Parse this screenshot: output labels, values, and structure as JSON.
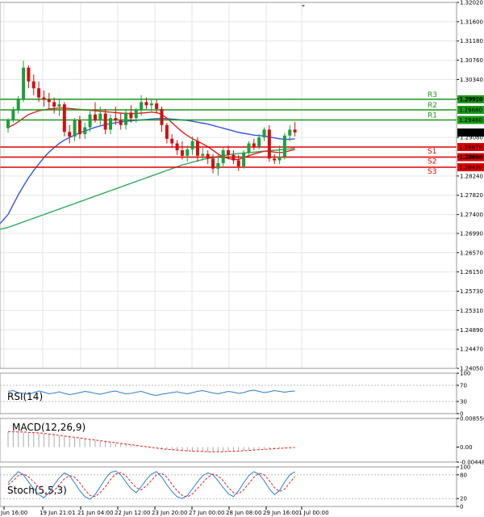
{
  "chart_data": {
    "type": "candlestick",
    "ylim": [
      1.2405,
      1.3202
    ],
    "y_ticks": [
      "1.32020",
      "1.31600",
      "1.31180",
      "1.30760",
      "1.30340",
      "1.29920",
      "1.29080",
      "1.28660",
      "1.28240",
      "1.27820",
      "1.27400",
      "1.26990",
      "1.26570",
      "1.26150",
      "1.25730",
      "1.25310",
      "1.24890",
      "1.24470",
      "1.24050"
    ],
    "x_ticks": [
      "Jun 16:00",
      "19 Jun 21:01",
      "21 Jun 04:00",
      "22 Jun 12:00",
      "23 Jun 20:00",
      "27 Jun 00:00",
      "28 Jun 08:00",
      "29 Jun 16:00",
      "1 Jul 00:00"
    ],
    "current_price": "1.29186",
    "levels": [
      {
        "name": "R3",
        "value": 1.2991,
        "label": "1.29910",
        "color": "#1a9a1a"
      },
      {
        "name": "R2",
        "value": 1.2968,
        "label": "1.29680",
        "color": "#1a9a1a"
      },
      {
        "name": "R1",
        "value": 1.2946,
        "label": "1.29460",
        "color": "#1a9a1a"
      },
      {
        "name": "S1",
        "value": 1.2887,
        "label": "1.28870",
        "color": "#e00000"
      },
      {
        "name": "S2",
        "value": 1.2865,
        "label": "1.28650",
        "color": "#e00000"
      },
      {
        "name": "S3",
        "value": 1.2843,
        "label": "1.28430",
        "color": "#e00000"
      }
    ],
    "candles": [
      [
        1.2928,
        1.295,
        1.2918,
        1.2945
      ],
      [
        1.2945,
        1.2975,
        1.294,
        1.2968
      ],
      [
        1.2968,
        1.2998,
        1.296,
        1.299
      ],
      [
        1.299,
        1.3075,
        1.2985,
        1.306
      ],
      [
        1.306,
        1.3065,
        1.3015,
        1.303
      ],
      [
        1.303,
        1.3045,
        1.3,
        1.3015
      ],
      [
        1.3015,
        1.303,
        1.2985,
        1.2995
      ],
      [
        1.2995,
        1.301,
        1.2975,
        1.299
      ],
      [
        1.299,
        1.3005,
        1.297,
        1.2985
      ],
      [
        1.2985,
        1.2995,
        1.296,
        1.2975
      ],
      [
        1.2975,
        1.299,
        1.2955,
        1.298
      ],
      [
        1.298,
        1.2985,
        1.291,
        1.292
      ],
      [
        1.292,
        1.2935,
        1.2895,
        1.291
      ],
      [
        1.291,
        1.295,
        1.29,
        1.2945
      ],
      [
        1.2945,
        1.2955,
        1.2905,
        1.2915
      ],
      [
        1.2915,
        1.294,
        1.2905,
        1.293
      ],
      [
        1.293,
        1.2965,
        1.292,
        1.2958
      ],
      [
        1.2958,
        1.2985,
        1.294,
        1.2945
      ],
      [
        1.2945,
        1.2975,
        1.2935,
        1.296
      ],
      [
        1.296,
        1.297,
        1.2915,
        1.2925
      ],
      [
        1.2925,
        1.2958,
        1.2915,
        1.295
      ],
      [
        1.295,
        1.2975,
        1.2935,
        1.2945
      ],
      [
        1.2945,
        1.296,
        1.2925,
        1.2935
      ],
      [
        1.2935,
        1.297,
        1.2925,
        1.2962
      ],
      [
        1.2962,
        1.2978,
        1.294,
        1.295
      ],
      [
        1.295,
        1.2972,
        1.294,
        1.2968
      ],
      [
        1.2968,
        1.3,
        1.2955,
        1.2985
      ],
      [
        1.2985,
        1.2995,
        1.297,
        1.2978
      ],
      [
        1.2978,
        1.2992,
        1.2965,
        1.2982
      ],
      [
        1.2982,
        1.299,
        1.296,
        1.297
      ],
      [
        1.297,
        1.2975,
        1.292,
        1.2935
      ],
      [
        1.2935,
        1.294,
        1.2895,
        1.2905
      ],
      [
        1.2905,
        1.2915,
        1.2885,
        1.2895
      ],
      [
        1.2895,
        1.2902,
        1.287,
        1.288
      ],
      [
        1.288,
        1.29,
        1.286,
        1.2868
      ],
      [
        1.2868,
        1.289,
        1.2855,
        1.2882
      ],
      [
        1.2882,
        1.291,
        1.287,
        1.29
      ],
      [
        1.29,
        1.2908,
        1.2855,
        1.2868
      ],
      [
        1.2868,
        1.2885,
        1.2858,
        1.2872
      ],
      [
        1.2872,
        1.288,
        1.285,
        1.2862
      ],
      [
        1.2862,
        1.2872,
        1.283,
        1.284
      ],
      [
        1.284,
        1.287,
        1.2825,
        1.2852
      ],
      [
        1.2852,
        1.2885,
        1.2845,
        1.288
      ],
      [
        1.288,
        1.289,
        1.286,
        1.287
      ],
      [
        1.287,
        1.288,
        1.285,
        1.2858
      ],
      [
        1.2858,
        1.287,
        1.2835,
        1.2845
      ],
      [
        1.2845,
        1.288,
        1.284,
        1.2875
      ],
      [
        1.2875,
        1.29,
        1.287,
        1.2895
      ],
      [
        1.2895,
        1.2905,
        1.288,
        1.2888
      ],
      [
        1.2888,
        1.2915,
        1.2882,
        1.2908
      ],
      [
        1.2908,
        1.293,
        1.29,
        1.2925
      ],
      [
        1.2925,
        1.2935,
        1.2855,
        1.2862
      ],
      [
        1.2862,
        1.2872,
        1.285,
        1.2858
      ],
      [
        1.2858,
        1.289,
        1.285,
        1.2866
      ],
      [
        1.2866,
        1.2918,
        1.286,
        1.2912
      ],
      [
        1.2912,
        1.2935,
        1.29,
        1.2925
      ],
      [
        1.2925,
        1.2942,
        1.291,
        1.2919
      ]
    ],
    "ma_red": [
      1.293,
      1.2935,
      1.2942,
      1.295,
      1.2958,
      1.2962,
      1.2966,
      1.2968,
      1.297,
      1.2971,
      1.2972,
      1.2972,
      1.2971,
      1.297,
      1.2969,
      1.2968,
      1.2967,
      1.2966,
      1.2965,
      1.2964,
      1.2963,
      1.2962,
      1.2961,
      1.296,
      1.296,
      1.296,
      1.2961,
      1.2962,
      1.2963,
      1.2962,
      1.2958,
      1.295,
      1.294,
      1.293,
      1.292,
      1.2912,
      1.2905,
      1.29,
      1.2894,
      1.2888,
      1.288,
      1.2872,
      1.2866,
      1.2862,
      1.286,
      1.286,
      1.2864,
      1.2868,
      1.2872,
      1.2875,
      1.2878,
      1.2878,
      1.2876,
      1.2875,
      1.2876,
      1.2879,
      1.2882
    ],
    "ma_blue": [
      1.274,
      1.2762,
      1.2783,
      1.2802,
      1.282,
      1.2836,
      1.285,
      1.2864,
      1.2876,
      1.2886,
      1.2895,
      1.2902,
      1.2908,
      1.2913,
      1.2918,
      1.2922,
      1.2926,
      1.293,
      1.2933,
      1.2936,
      1.2938,
      1.294,
      1.2942,
      1.2943,
      1.2944,
      1.2945,
      1.2946,
      1.2947,
      1.2948,
      1.2949,
      1.2949,
      1.2949,
      1.2948,
      1.2947,
      1.2946,
      1.2945,
      1.2943,
      1.2941,
      1.2939,
      1.2937,
      1.2934,
      1.2931,
      1.2928,
      1.2925,
      1.2922,
      1.2919,
      1.2917,
      1.2915,
      1.2913,
      1.2912,
      1.2911,
      1.2909,
      1.2907,
      1.2905,
      1.2904,
      1.2904,
      1.2905
    ],
    "ma_green": [
      1.2712,
      1.2716,
      1.272,
      1.2724,
      1.2728,
      1.2732,
      1.2736,
      1.274,
      1.2744,
      1.2748,
      1.2752,
      1.2756,
      1.276,
      1.2764,
      1.2768,
      1.2772,
      1.2776,
      1.278,
      1.2784,
      1.2788,
      1.2792,
      1.2796,
      1.28,
      1.2804,
      1.2808,
      1.2812,
      1.2816,
      1.282,
      1.2824,
      1.2828,
      1.2832,
      1.2836,
      1.284,
      1.2844,
      1.2848,
      1.2851,
      1.2854,
      1.2857,
      1.286,
      1.2862,
      1.2864,
      1.2866,
      1.2868,
      1.287,
      1.2872,
      1.2873,
      1.2874,
      1.2875,
      1.2876,
      1.2877,
      1.2878,
      1.2879,
      1.288,
      1.2881,
      1.2882,
      1.2883,
      1.2885
    ],
    "indicators": {
      "rsi": {
        "title": "RSI(14)",
        "ylim": [
          0,
          100
        ],
        "ticks": [
          "100",
          "70",
          "30",
          "0"
        ],
        "values": [
          55,
          57,
          52,
          50,
          48,
          52,
          56,
          53,
          49,
          51,
          54,
          50,
          47,
          49,
          52,
          55,
          53,
          50,
          48,
          51,
          54,
          56,
          52,
          49,
          50,
          53,
          55,
          51,
          47,
          45,
          48,
          50,
          52,
          54,
          51,
          49,
          52,
          55,
          57,
          54,
          51,
          49,
          52,
          55,
          53,
          50,
          52,
          56,
          58,
          55,
          52,
          54,
          57,
          55,
          53,
          55,
          56
        ]
      },
      "macd": {
        "title": "MACD(12,26,9)",
        "ylim": [
          -0.004488,
          0.008556
        ],
        "ticks": [
          "0.008556",
          "0.00",
          "-0.004488"
        ],
        "histogram": [
          0.0045,
          0.0045,
          0.0045,
          0.0044,
          0.0043,
          0.0042,
          0.0041,
          0.004,
          0.0038,
          0.0036,
          0.0034,
          0.0032,
          0.003,
          0.0028,
          0.0026,
          0.0024,
          0.0022,
          0.002,
          0.0018,
          0.0016,
          0.0014,
          0.0012,
          0.001,
          0.0008,
          0.0006,
          0.0004,
          0.0002,
          0.0,
          -0.0002,
          -0.0004,
          -0.0006,
          -0.0008,
          -0.001,
          -0.0011,
          -0.0012,
          -0.0013,
          -0.0014,
          -0.0014,
          -0.0015,
          -0.0015,
          -0.0015,
          -0.0015,
          -0.0014,
          -0.0014,
          -0.0013,
          -0.0012,
          -0.0011,
          -0.001,
          -0.0009,
          -0.0008,
          -0.0007,
          -0.0006,
          -0.0005,
          -0.0004,
          -0.0003,
          -0.0002,
          -0.0001
        ],
        "signal": [
          0.0046,
          0.0046,
          0.0045,
          0.0045,
          0.0044,
          0.0043,
          0.0042,
          0.0041,
          0.0039,
          0.0037,
          0.0035,
          0.0033,
          0.0031,
          0.0029,
          0.0027,
          0.0025,
          0.0023,
          0.0021,
          0.0019,
          0.0017,
          0.0015,
          0.0013,
          0.0011,
          0.0009,
          0.0007,
          0.0005,
          0.0003,
          0.0001,
          -0.0001,
          -0.0003,
          -0.0005,
          -0.0007,
          -0.0008,
          -0.0009,
          -0.001,
          -0.0011,
          -0.0012,
          -0.0013,
          -0.0013,
          -0.0014,
          -0.0014,
          -0.0014,
          -0.0014,
          -0.0013,
          -0.0013,
          -0.0012,
          -0.0011,
          -0.001,
          -0.0009,
          -0.0008,
          -0.0007,
          -0.0006,
          -0.0005,
          -0.0004,
          -0.0003,
          -0.0002,
          -0.0001
        ]
      },
      "stoch": {
        "title": "Stoch(5,5,3)",
        "ylim": [
          0,
          100
        ],
        "ticks": [
          "100",
          "80",
          "20",
          "0"
        ],
        "k": [
          60,
          75,
          88,
          80,
          62,
          45,
          30,
          22,
          35,
          55,
          72,
          85,
          78,
          60,
          40,
          25,
          18,
          30,
          50,
          70,
          86,
          90,
          80,
          62,
          45,
          35,
          50,
          68,
          82,
          88,
          75,
          55,
          38,
          25,
          20,
          28,
          45,
          62,
          78,
          85,
          80,
          65,
          48,
          32,
          25,
          40,
          60,
          78,
          88,
          82,
          65,
          45,
          30,
          40,
          62,
          80,
          88
        ],
        "d": [
          55,
          65,
          78,
          82,
          75,
          62,
          48,
          35,
          30,
          40,
          55,
          70,
          78,
          74,
          60,
          42,
          28,
          25,
          35,
          50,
          68,
          82,
          86,
          78,
          62,
          48,
          42,
          52,
          66,
          80,
          84,
          74,
          56,
          40,
          28,
          24,
          32,
          46,
          60,
          74,
          82,
          78,
          65,
          48,
          35,
          32,
          42,
          58,
          74,
          84,
          80,
          66,
          48,
          38,
          44,
          60,
          76
        ]
      }
    }
  }
}
